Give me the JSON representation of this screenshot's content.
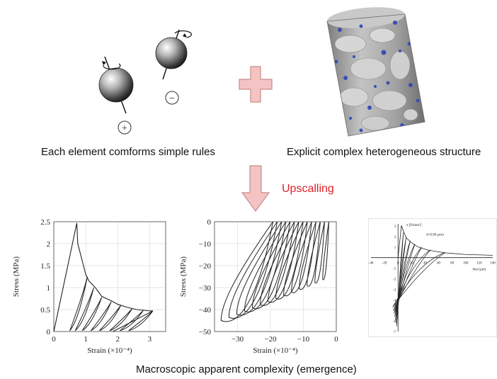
{
  "captions": {
    "left": "Each element comforms simple rules",
    "right": "Explicit complex heterogeneous structure",
    "upscaling": "Upscalling",
    "bottom": "Macroscopic apparent complexity (emergence)"
  },
  "colors": {
    "upscaling_text": "#e0202a",
    "plus_fill": "#f4c4c4",
    "plus_stroke": "#c98a8a",
    "arrow_fill": "#f4c4c4",
    "arrow_stroke": "#c98a8a",
    "cylinder_grey": "#a9a9a9",
    "pore_blue": "#3a4fb4"
  },
  "icons": {
    "element_positive": "charged-sphere-plus-icon",
    "element_negative": "charged-sphere-minus-icon",
    "plus": "plus-sign-icon",
    "arrow": "down-arrow-icon",
    "structure": "heterogeneous-cylinder-icon"
  },
  "signs": {
    "positive": "+",
    "negative": "−"
  },
  "chart_data": [
    {
      "type": "line",
      "xlabel": "Strain (×10⁻⁴)",
      "ylabel": "Stress (MPa)",
      "xlim": [
        0,
        3.5
      ],
      "ylim": [
        0,
        2.5
      ],
      "xticks": [
        "0",
        "1",
        "2",
        "3"
      ],
      "yticks": [
        "0",
        "0.5",
        "1",
        "1.5",
        "2",
        "2.5"
      ],
      "grid": true,
      "envelope": {
        "x": [
          0,
          0.72,
          0.75,
          1.0,
          1.1,
          1.3,
          1.5,
          1.8,
          2.0,
          2.3,
          2.6,
          3.0,
          3.1
        ],
        "y": [
          0,
          2.47,
          2.0,
          1.3,
          1.15,
          1.0,
          0.8,
          0.7,
          0.62,
          0.55,
          0.5,
          0.47,
          0.47
        ]
      }
    },
    {
      "type": "line",
      "xlabel": "Strain (×10⁻⁴)",
      "ylabel": "Stress (MPa)",
      "xlim": [
        -37,
        0
      ],
      "ylim": [
        -50,
        0
      ],
      "xticks": [
        "−30",
        "−20",
        "−10",
        "0"
      ],
      "yticks": [
        "0",
        "−10",
        "−20",
        "−30",
        "−40",
        "−50"
      ],
      "grid": true,
      "loops": {
        "count": 14,
        "min_strain": -35,
        "min_stress": -45
      }
    },
    {
      "type": "line",
      "title": "",
      "ylabel_text": "σ [N/mm²]",
      "xlabel_text": "δtot (μm)",
      "annotation": "δ=0.08 μm/s",
      "xlim": [
        -40,
        140
      ],
      "ylim": [
        -7,
        3.2
      ],
      "xticks": [
        "-40",
        "-20",
        "0",
        "20",
        "40",
        "60",
        "80",
        "100",
        "120",
        "140"
      ],
      "yticks": [
        "3",
        "2",
        "1",
        "-1",
        "-2",
        "-3",
        "-4",
        "-5",
        "-6",
        "-7"
      ],
      "envelope": {
        "x": [
          0,
          5,
          8,
          12,
          20,
          30,
          45,
          70,
          100,
          140
        ],
        "y": [
          0,
          3.05,
          2.5,
          1.9,
          1.4,
          1.0,
          0.7,
          0.45,
          0.3,
          0.22
        ]
      }
    }
  ]
}
